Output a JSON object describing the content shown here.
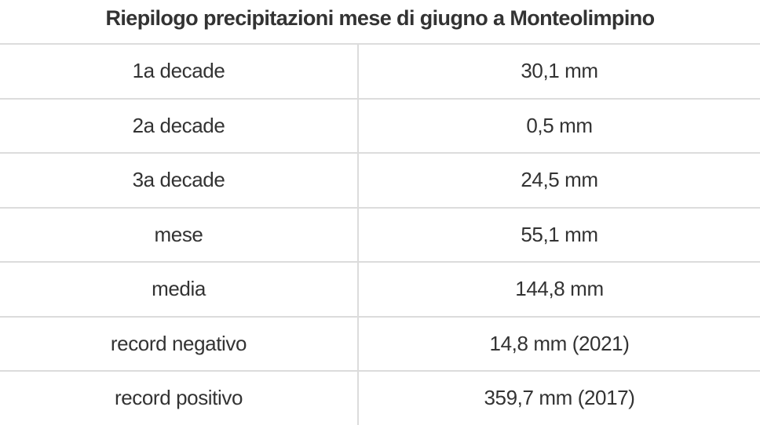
{
  "colors": {
    "background": "#ffffff",
    "text": "#333333",
    "border": "#dcdcdc"
  },
  "table": {
    "title": "Riepilogo precipitazioni mese di giugno a Monteolimpino",
    "rows": [
      {
        "label": "1a decade",
        "value": "30,1 mm"
      },
      {
        "label": "2a decade",
        "value": "0,5 mm"
      },
      {
        "label": "3a decade",
        "value": "24,5 mm"
      },
      {
        "label": "mese",
        "value": "55,1 mm"
      },
      {
        "label": "media",
        "value": "144,8 mm"
      },
      {
        "label": "record negativo",
        "value": "14,8 mm (2021)"
      },
      {
        "label": "record positivo",
        "value": "359,7 mm (2017)"
      }
    ]
  },
  "chart_data": {
    "type": "table",
    "title": "Riepilogo precipitazioni mese di giugno a Monteolimpino",
    "categories": [
      "1a decade",
      "2a decade",
      "3a decade",
      "mese",
      "media",
      "record negativo",
      "record positivo"
    ],
    "values_mm": [
      30.1,
      0.5,
      24.5,
      55.1,
      144.8,
      14.8,
      359.7
    ],
    "value_labels": [
      "30,1 mm",
      "0,5 mm",
      "24,5 mm",
      "55,1 mm",
      "144,8 mm",
      "14,8 mm (2021)",
      "359,7 mm (2017)"
    ],
    "record_years": {
      "record negativo": "2021",
      "record positivo": "2017"
    },
    "unit": "mm"
  }
}
